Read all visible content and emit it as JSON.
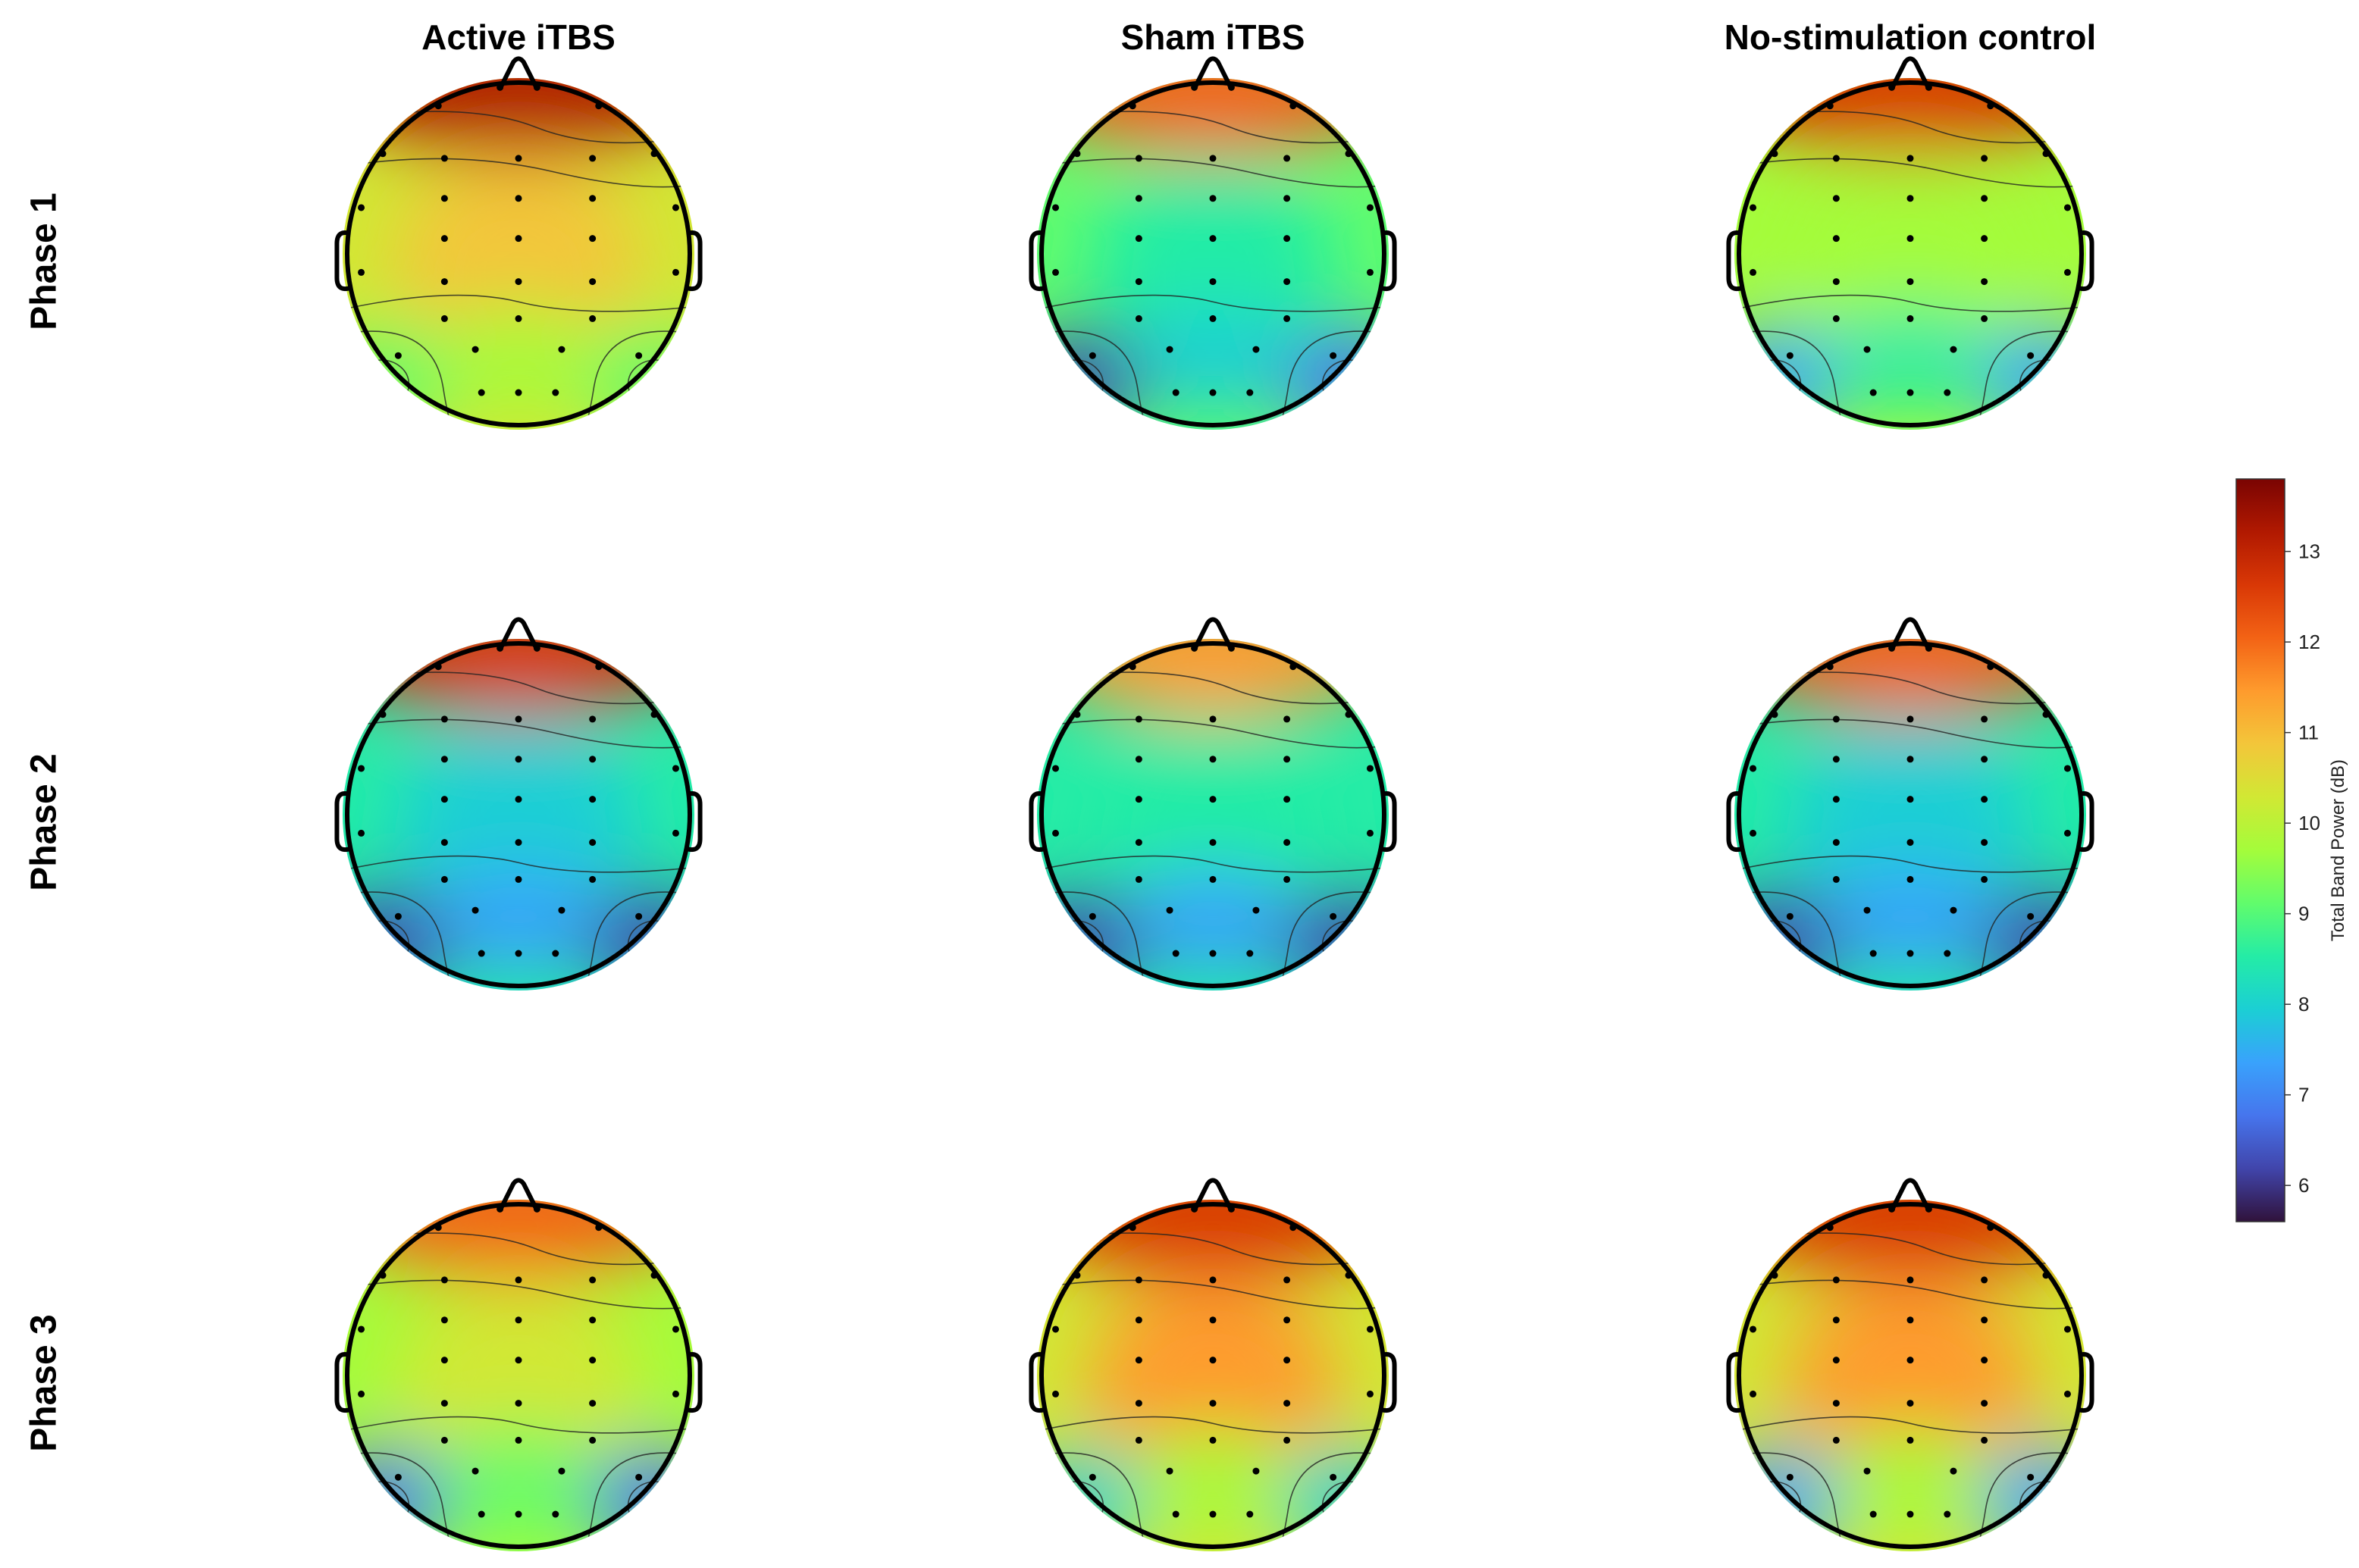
{
  "chart_data": {
    "type": "heatmap",
    "subtype": "topographic-map-grid",
    "columns": [
      "Active iTBS",
      "Sham iTBS",
      "No-stimulation control"
    ],
    "rows": [
      "Phase 1",
      "Phase 2",
      "Phase 3"
    ],
    "colorbar": {
      "label": "Total Band Power (dB)",
      "range": [
        5.6,
        13.8
      ],
      "ticks": [
        6,
        7,
        8,
        9,
        10,
        11,
        12,
        13
      ],
      "colormap": "turbo",
      "colors": [
        "#30123b",
        "#4145ab",
        "#4675ed",
        "#39a2fc",
        "#1bcfd4",
        "#24eca6",
        "#61fc6c",
        "#a4fc3b",
        "#d1e834",
        "#f3c63a",
        "#fe9b2d",
        "#f36315",
        "#d93806",
        "#b11901",
        "#7a0402"
      ]
    },
    "contours": "on",
    "sensors_shown": "on",
    "head_outline": "on",
    "maps": [
      {
        "phase": "Phase 1",
        "condition": "Active iTBS",
        "frontal_db": 13.3,
        "central_db": 10.6,
        "occipital_left_db": 9.2,
        "occipital_right_db": 9.4,
        "posterior_db": 9.6,
        "rim_db": 10.2
      },
      {
        "phase": "Phase 1",
        "condition": "Sham iTBS",
        "frontal_db": 12.2,
        "central_db": 8.8,
        "occipital_left_db": 6.0,
        "occipital_right_db": 7.0,
        "posterior_db": 7.8,
        "rim_db": 9.2
      },
      {
        "phase": "Phase 1",
        "condition": "No-stimulation control",
        "frontal_db": 12.8,
        "central_db": 9.8,
        "occipital_left_db": 7.4,
        "occipital_right_db": 7.2,
        "posterior_db": 8.6,
        "rim_db": 9.6
      },
      {
        "phase": "Phase 2",
        "condition": "Active iTBS",
        "frontal_db": 12.4,
        "central_db": 7.9,
        "occipital_left_db": 5.9,
        "occipital_right_db": 6.2,
        "posterior_db": 7.2,
        "rim_db": 8.6
      },
      {
        "phase": "Phase 2",
        "condition": "Sham iTBS",
        "frontal_db": 11.6,
        "central_db": 8.4,
        "occipital_left_db": 6.4,
        "occipital_right_db": 6.0,
        "posterior_db": 7.6,
        "rim_db": 8.8
      },
      {
        "phase": "Phase 2",
        "condition": "No-stimulation control",
        "frontal_db": 11.8,
        "central_db": 8.2,
        "occipital_left_db": 5.9,
        "occipital_right_db": 6.3,
        "posterior_db": 7.2,
        "rim_db": 8.6
      },
      {
        "phase": "Phase 3",
        "condition": "Active iTBS",
        "frontal_db": 12.0,
        "central_db": 10.0,
        "occipital_left_db": 7.0,
        "occipital_right_db": 6.9,
        "posterior_db": 9.0,
        "rim_db": 9.8
      },
      {
        "phase": "Phase 3",
        "condition": "Sham iTBS",
        "frontal_db": 12.6,
        "central_db": 11.2,
        "occipital_left_db": 8.0,
        "occipital_right_db": 8.2,
        "posterior_db": 9.6,
        "rim_db": 10.4
      },
      {
        "phase": "Phase 3",
        "condition": "No-stimulation control",
        "frontal_db": 12.6,
        "central_db": 11.2,
        "occipital_left_db": 7.2,
        "occipital_right_db": 7.4,
        "posterior_db": 9.8,
        "rim_db": 10.2
      }
    ]
  }
}
